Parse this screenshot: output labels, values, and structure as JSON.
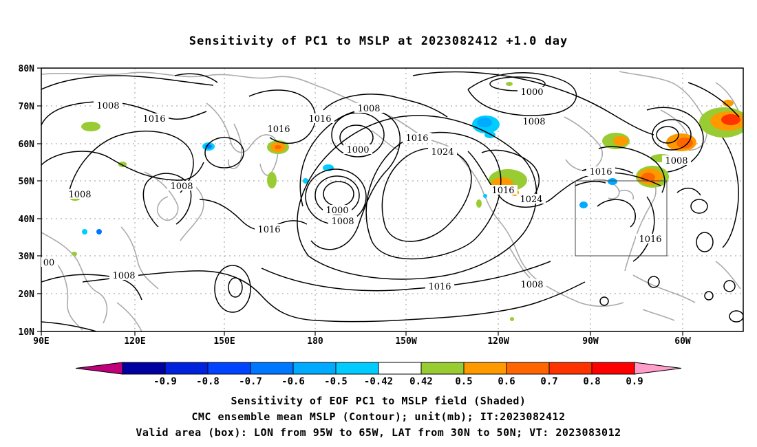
{
  "title": "Sensitivity of PC1 to MSLP at 2023082412 +1.0 day",
  "lat_labels": [
    "80N",
    "70N",
    "60N",
    "50N",
    "40N",
    "30N",
    "20N",
    "10N"
  ],
  "lon_labels": [
    "90E",
    "120E",
    "150E",
    "180",
    "150W",
    "120W",
    "90W",
    "60W"
  ],
  "contour_labels": [
    "1008",
    "1016",
    "1016",
    "1016",
    "1008",
    "1000",
    "1008",
    "1016",
    "1024",
    "1000",
    "1008",
    "1008",
    "1016",
    "1008",
    "1016",
    "1024",
    "1016",
    "1008",
    "1016",
    "1008",
    "1000",
    "1008",
    "1008",
    "1016",
    "00"
  ],
  "colorbar": {
    "ticks": [
      "-0.9",
      "-0.8",
      "-0.7",
      "-0.6",
      "-0.5",
      "-0.42",
      "0.42",
      "0.5",
      "0.6",
      "0.7",
      "0.8",
      "0.9"
    ],
    "colors": [
      "#0000a0",
      "#0022dd",
      "#0044ff",
      "#0077ff",
      "#00aaff",
      "#00ccff",
      "#ffffff",
      "#99cc33",
      "#ff9900",
      "#ff6600",
      "#ff3300",
      "#ff0000"
    ],
    "low_color": "#c0007a",
    "high_color": "#ff9ecb"
  },
  "colors": {
    "contour": "#000000",
    "coastline": "#aaaaaa",
    "grid": "#999999",
    "box": "#000000"
  },
  "captions": [
    "Sensitivity of EOF PC1 to MSLP field (Shaded)",
    "CMC ensemble mean MSLP (Contour); unit(mb); IT:2023082412",
    "Valid area (box): LON from 95W to 65W, LAT from 30N to 50N; VT: 2023083012"
  ]
}
